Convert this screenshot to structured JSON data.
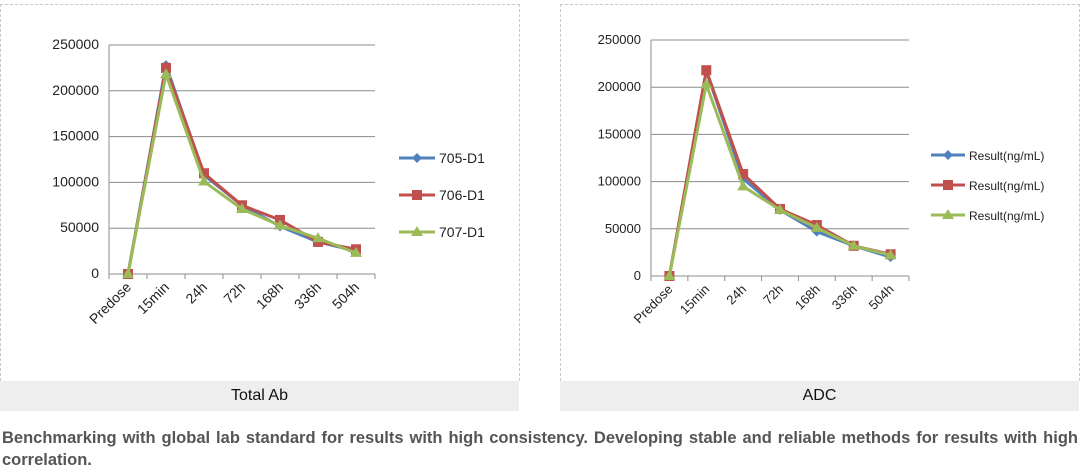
{
  "chart_data": [
    {
      "type": "line",
      "title": "Total Ab",
      "categories": [
        "Predose",
        "15min",
        "24h",
        "72h",
        "168h",
        "336h",
        "504h"
      ],
      "ylim": [
        0,
        250000
      ],
      "yticks": [
        "250000",
        "200000",
        "150000",
        "100000",
        "50000",
        "0"
      ],
      "legend_position": "right",
      "series": [
        {
          "name": "705-D1",
          "color": "#4f81bd",
          "marker": "diamond",
          "values": [
            0,
            228000,
            108000,
            75000,
            52000,
            35000,
            25000
          ]
        },
        {
          "name": "706-D1",
          "color": "#c0504d",
          "marker": "square",
          "values": [
            0,
            225000,
            110000,
            75000,
            59000,
            35000,
            27000
          ]
        },
        {
          "name": "707-D1",
          "color": "#9bbb59",
          "marker": "triangle",
          "values": [
            0,
            218000,
            101000,
            71000,
            53000,
            39000,
            23000
          ]
        }
      ]
    },
    {
      "type": "line",
      "title": "ADC",
      "categories": [
        "Predose",
        "15min",
        "24h",
        "72h",
        "168h",
        "336h",
        "504h"
      ],
      "ylim": [
        0,
        250000
      ],
      "yticks": [
        "250000",
        "200000",
        "150000",
        "100000",
        "50000",
        "0"
      ],
      "legend_position": "right",
      "series": [
        {
          "name": "Result(ng/mL)",
          "color": "#4f81bd",
          "marker": "diamond",
          "values": [
            0,
            217000,
            103000,
            70000,
            47000,
            32000,
            20000
          ]
        },
        {
          "name": "Result(ng/mL)",
          "color": "#c0504d",
          "marker": "square",
          "values": [
            0,
            218000,
            108000,
            71000,
            54000,
            32000,
            23000
          ]
        },
        {
          "name": "Result(ng/mL)",
          "color": "#9bbb59",
          "marker": "triangle",
          "values": [
            0,
            203000,
            95000,
            70000,
            51000,
            32000,
            22000
          ]
        }
      ]
    }
  ],
  "captions": {
    "left": "Total Ab",
    "right": "ADC"
  },
  "description": "Benchmarking with global lab standard for results with high consistency. Developing stable and reliable methods for results with high correlation."
}
